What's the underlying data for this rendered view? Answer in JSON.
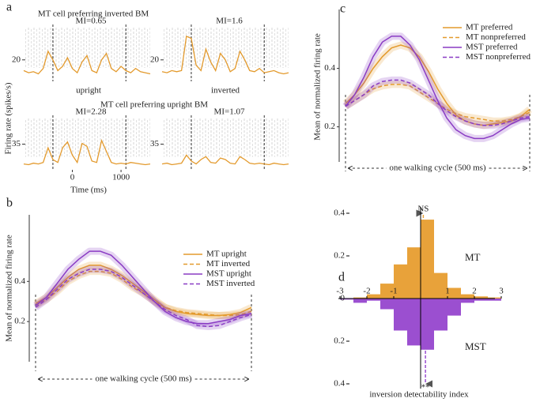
{
  "chart_data": [
    {
      "type": "psth",
      "label": "a",
      "titles": [
        "MT cell preferring inverted BM",
        "MT cell preferring upright BM"
      ],
      "conditions": [
        "upright",
        "inverted"
      ],
      "ylabel": "Firing rate (spikes/s)",
      "xlabel": "Time (ms)",
      "xlim": [
        -1000,
        1600
      ],
      "xticks": [
        0,
        1000
      ],
      "events": [
        -400,
        1100
      ],
      "color": "#e39a2d",
      "x": [
        -1000,
        -900,
        -800,
        -700,
        -600,
        -500,
        -400,
        -300,
        -200,
        -100,
        0,
        100,
        200,
        300,
        400,
        500,
        600,
        700,
        800,
        900,
        1000,
        1100,
        1200,
        1300,
        1400,
        1500,
        1600
      ],
      "panels": [
        {
          "annotation": "MI=0.65",
          "ylim": [
            0,
            50
          ],
          "yticks": [
            20
          ],
          "values": [
            10,
            8,
            9,
            7,
            12,
            28,
            20,
            10,
            14,
            22,
            12,
            8,
            18,
            24,
            10,
            8,
            20,
            26,
            12,
            9,
            14,
            10,
            8,
            12,
            9,
            8,
            7
          ]
        },
        {
          "annotation": "MI=1.6",
          "ylim": [
            0,
            50
          ],
          "yticks": [
            20
          ],
          "values": [
            9,
            8,
            10,
            9,
            10,
            42,
            40,
            15,
            10,
            30,
            18,
            10,
            26,
            20,
            9,
            12,
            28,
            20,
            10,
            9,
            12,
            8,
            9,
            10,
            8,
            7,
            8
          ]
        },
        {
          "annotation": "MI=2.28",
          "ylim": [
            0,
            70
          ],
          "yticks": [
            35
          ],
          "values": [
            8,
            7,
            9,
            8,
            10,
            30,
            14,
            10,
            30,
            38,
            20,
            10,
            36,
            32,
            12,
            10,
            40,
            25,
            10,
            8,
            9,
            8,
            10,
            9,
            8,
            7,
            8
          ]
        },
        {
          "annotation": "MI=1.07",
          "ylim": [
            0,
            70
          ],
          "yticks": [
            35
          ],
          "values": [
            8,
            9,
            7,
            8,
            9,
            20,
            12,
            8,
            14,
            18,
            10,
            9,
            16,
            14,
            9,
            8,
            18,
            14,
            9,
            8,
            9,
            8,
            7,
            9,
            8,
            7,
            8
          ]
        }
      ]
    },
    {
      "type": "line",
      "label": "b",
      "ylabel": "Mean of normalized firing rate",
      "xlabel": "one walking cycle (500 ms)",
      "x": [
        0,
        25,
        50,
        75,
        100,
        125,
        150,
        175,
        200,
        225,
        250,
        275,
        300,
        325,
        350,
        375,
        400,
        425,
        450,
        475,
        500
      ],
      "xlim": [
        0,
        500
      ],
      "ylim": [
        0,
        0.7
      ],
      "yticks": [
        0.2,
        0.4
      ],
      "series": [
        {
          "name": "MT upright",
          "color": "#e39a2d",
          "dashed": false,
          "values": [
            0.29,
            0.32,
            0.37,
            0.42,
            0.46,
            0.48,
            0.48,
            0.46,
            0.43,
            0.39,
            0.35,
            0.31,
            0.27,
            0.25,
            0.24,
            0.235,
            0.23,
            0.23,
            0.235,
            0.245,
            0.27
          ]
        },
        {
          "name": "MT inverted",
          "color": "#e39a2d",
          "dashed": true,
          "values": [
            0.28,
            0.31,
            0.35,
            0.4,
            0.43,
            0.45,
            0.45,
            0.44,
            0.41,
            0.37,
            0.34,
            0.3,
            0.27,
            0.255,
            0.245,
            0.24,
            0.235,
            0.23,
            0.23,
            0.235,
            0.25
          ]
        },
        {
          "name": "MST upright",
          "color": "#8a3cc4",
          "dashed": false,
          "values": [
            0.28,
            0.32,
            0.39,
            0.46,
            0.51,
            0.55,
            0.55,
            0.53,
            0.48,
            0.42,
            0.36,
            0.3,
            0.25,
            0.22,
            0.2,
            0.19,
            0.19,
            0.2,
            0.21,
            0.23,
            0.24
          ]
        },
        {
          "name": "MST inverted",
          "color": "#8a3cc4",
          "dashed": true,
          "values": [
            0.27,
            0.31,
            0.36,
            0.41,
            0.44,
            0.46,
            0.46,
            0.45,
            0.42,
            0.38,
            0.34,
            0.3,
            0.26,
            0.23,
            0.21,
            0.18,
            0.175,
            0.18,
            0.2,
            0.22,
            0.235
          ]
        }
      ]
    },
    {
      "type": "line",
      "label": "c",
      "ylabel": "Mean of normalized firing rate",
      "xlabel": "one walking cycle (500 ms)",
      "x": [
        0,
        25,
        50,
        75,
        100,
        125,
        150,
        175,
        200,
        225,
        250,
        275,
        300,
        325,
        350,
        375,
        400,
        425,
        450,
        475,
        500
      ],
      "xlim": [
        0,
        500
      ],
      "ylim": [
        0.08,
        0.58
      ],
      "yticks": [
        0.2,
        0.4
      ],
      "series": [
        {
          "name": "MT preferred",
          "color": "#e39a2d",
          "dashed": false,
          "values": [
            0.28,
            0.31,
            0.35,
            0.4,
            0.44,
            0.47,
            0.48,
            0.47,
            0.44,
            0.39,
            0.33,
            0.28,
            0.24,
            0.22,
            0.21,
            0.205,
            0.21,
            0.215,
            0.22,
            0.235,
            0.26
          ]
        },
        {
          "name": "MT nonpreferred",
          "color": "#e39a2d",
          "dashed": true,
          "values": [
            0.27,
            0.29,
            0.31,
            0.33,
            0.34,
            0.345,
            0.345,
            0.34,
            0.32,
            0.3,
            0.28,
            0.26,
            0.245,
            0.235,
            0.23,
            0.225,
            0.22,
            0.22,
            0.225,
            0.235,
            0.25
          ]
        },
        {
          "name": "MST preferred",
          "color": "#8a3cc4",
          "dashed": false,
          "values": [
            0.27,
            0.31,
            0.37,
            0.44,
            0.49,
            0.51,
            0.51,
            0.48,
            0.43,
            0.36,
            0.29,
            0.23,
            0.19,
            0.17,
            0.16,
            0.16,
            0.17,
            0.19,
            0.21,
            0.225,
            0.23
          ]
        },
        {
          "name": "MST nonpreferred",
          "color": "#8a3cc4",
          "dashed": true,
          "values": [
            0.27,
            0.29,
            0.31,
            0.34,
            0.355,
            0.36,
            0.36,
            0.35,
            0.33,
            0.31,
            0.28,
            0.255,
            0.235,
            0.22,
            0.21,
            0.205,
            0.205,
            0.21,
            0.22,
            0.23,
            0.235
          ]
        }
      ]
    },
    {
      "type": "mirror-histogram",
      "label": "d",
      "xlabel": "inversion detectability index",
      "bins": [
        -3,
        -2.5,
        -2,
        -1.5,
        -1,
        -0.5,
        0,
        0.5,
        1,
        1.5,
        2,
        2.5,
        3
      ],
      "xticks": [
        -3,
        -2,
        -1,
        1,
        2,
        3
      ],
      "ylim": [
        0,
        0.42
      ],
      "yticks": [
        0,
        0.2,
        0.4
      ],
      "y2lim": [
        0,
        0.42
      ],
      "y2ticks": [
        0.2,
        0.4
      ],
      "series": [
        {
          "name": "MT",
          "color": "#e8a23a",
          "annotation": "NS",
          "mean": 0.1,
          "values": [
            0,
            0.005,
            0.02,
            0.07,
            0.16,
            0.24,
            0.37,
            0.12,
            0.05,
            0.02,
            0.01,
            0.005
          ]
        },
        {
          "name": "MST",
          "color": "#9b4fd0",
          "annotation": "**",
          "mean": 0.18,
          "axis": "y2",
          "values": [
            0.005,
            0.02,
            0.01,
            0.05,
            0.15,
            0.22,
            0.24,
            0.15,
            0.08,
            0.02,
            0.01,
            0.01
          ]
        }
      ]
    }
  ]
}
